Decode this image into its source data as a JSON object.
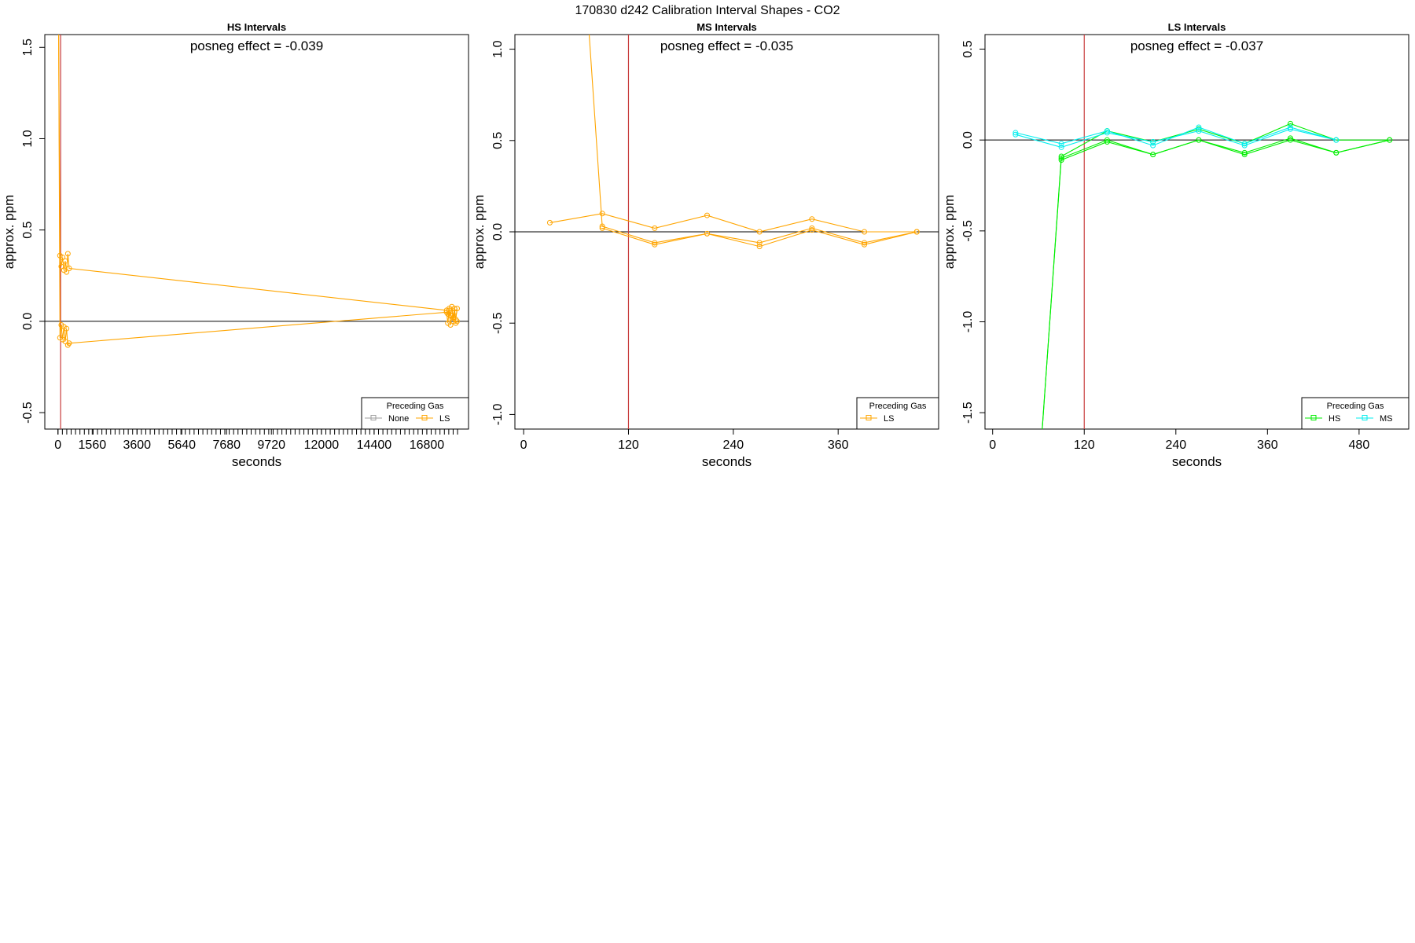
{
  "figure": {
    "suptitle": "170830  d242   Calibration Interval Shapes - CO2"
  },
  "chart_data": [
    {
      "type": "line",
      "title": "HS Intervals",
      "xlabel": "seconds",
      "ylabel": "approx. ppm",
      "xlim": [
        -600,
        18700
      ],
      "ylim": [
        -0.59,
        1.57
      ],
      "xticks": [
        0,
        1560,
        3600,
        5640,
        7680,
        9720,
        12000,
        14400,
        16800
      ],
      "yticks": [
        -0.5,
        0.0,
        0.5,
        1.0,
        1.5
      ],
      "annotation": "posneg effect = -0.039",
      "vline": 120,
      "hline": 0,
      "legend": {
        "title": "Preceding Gas",
        "position": "bottom-right",
        "entries": [
          {
            "label": "None",
            "color": "#9e9e9e"
          },
          {
            "label": "LS",
            "color": "#ffa500"
          }
        ]
      },
      "series": [
        {
          "color": "#ffa500",
          "x": [
            30,
            90,
            150,
            210,
            270,
            330,
            390,
            450,
            510,
            17700,
            17760,
            17820,
            17880,
            17940,
            18000,
            18060,
            18120,
            18180
          ],
          "y": [
            1.57,
            0.36,
            0.3,
            0.35,
            0.28,
            0.33,
            0.27,
            0.37,
            0.29,
            0.06,
            0.04,
            0.07,
            0.03,
            0.08,
            0.02,
            0.07,
            0.01,
            0.07
          ]
        },
        {
          "color": "#ffa500",
          "x": [
            30,
            90,
            150,
            210,
            270,
            330,
            390,
            450,
            510,
            17700,
            17760,
            17820,
            17880,
            17940,
            18000,
            18060,
            18120,
            18180
          ],
          "y": [
            1.57,
            -0.09,
            -0.02,
            -0.1,
            -0.03,
            -0.11,
            -0.04,
            -0.13,
            -0.12,
            0.05,
            -0.01,
            0.06,
            -0.02,
            0.03,
            0.0,
            0.05,
            -0.01,
            0.0
          ]
        }
      ]
    },
    {
      "type": "line",
      "title": "MS Intervals",
      "xlabel": "seconds",
      "ylabel": "approx. ppm",
      "xlim": [
        -10,
        475
      ],
      "ylim": [
        -1.08,
        1.08
      ],
      "xticks": [
        0,
        120,
        240,
        360
      ],
      "yticks": [
        -1.0,
        -0.5,
        0.0,
        0.5,
        1.0
      ],
      "annotation": "posneg effect = -0.035",
      "vline": 120,
      "hline": 0,
      "legend": {
        "title": "Preceding Gas",
        "position": "bottom-right",
        "entries": [
          {
            "label": "LS",
            "color": "#ffa500"
          }
        ]
      },
      "series": [
        {
          "color": "#ffa500",
          "x": [
            30,
            90,
            150,
            210,
            270,
            330,
            390,
            450
          ],
          "y": [
            0.05,
            0.1,
            0.02,
            0.09,
            0.0,
            0.07,
            0.0,
            0.0
          ]
        },
        {
          "color": "#ffa500",
          "x": [
            75,
            90,
            150,
            210,
            270,
            330,
            390,
            450
          ],
          "y": [
            1.08,
            0.03,
            -0.06,
            -0.01,
            -0.06,
            0.02,
            -0.06,
            0.0
          ]
        },
        {
          "color": "#ffa500",
          "x": [
            90,
            150,
            210,
            270,
            330,
            390,
            450
          ],
          "y": [
            0.02,
            -0.07,
            -0.01,
            -0.08,
            0.01,
            -0.07,
            0.0
          ]
        }
      ]
    },
    {
      "type": "line",
      "title": "LS Intervals",
      "xlabel": "seconds",
      "ylabel": "approx. ppm",
      "xlim": [
        -10,
        545
      ],
      "ylim": [
        -1.59,
        0.58
      ],
      "xticks": [
        0,
        120,
        240,
        360,
        480
      ],
      "yticks": [
        -1.5,
        -1.0,
        -0.5,
        0.0,
        0.5
      ],
      "annotation": "posneg effect = -0.037",
      "vline": 120,
      "hline": 0,
      "legend": {
        "title": "Preceding Gas",
        "position": "bottom-right",
        "entries": [
          {
            "label": "HS",
            "color": "#00ee00"
          },
          {
            "label": "MS",
            "color": "#00eeee"
          }
        ]
      },
      "series": [
        {
          "color": "#00ee00",
          "x": [
            65,
            90,
            150,
            210,
            270,
            330,
            390,
            450,
            520
          ],
          "y": [
            -1.59,
            -0.09,
            0.05,
            -0.01,
            0.06,
            -0.02,
            0.09,
            0.0,
            0.0
          ]
        },
        {
          "color": "#00ee00",
          "x": [
            65,
            90,
            150,
            210,
            270,
            330,
            390,
            450,
            520
          ],
          "y": [
            -1.59,
            -0.1,
            0.0,
            -0.08,
            0.0,
            -0.08,
            0.0,
            -0.07,
            0.0
          ]
        },
        {
          "color": "#00ee00",
          "x": [
            90,
            150,
            210,
            270,
            330,
            390,
            450,
            520
          ],
          "y": [
            -0.11,
            -0.01,
            -0.08,
            0.0,
            -0.07,
            0.01,
            -0.07,
            0.0
          ]
        },
        {
          "color": "#00eeee",
          "x": [
            30,
            90,
            150,
            210,
            270,
            330,
            390,
            450
          ],
          "y": [
            0.04,
            -0.02,
            0.05,
            -0.03,
            0.07,
            -0.02,
            0.07,
            0.0
          ]
        },
        {
          "color": "#00eeee",
          "x": [
            30,
            90,
            150,
            210,
            270,
            330,
            390,
            450
          ],
          "y": [
            0.03,
            -0.04,
            0.04,
            -0.01,
            0.05,
            -0.03,
            0.06,
            0.0
          ]
        }
      ]
    }
  ]
}
